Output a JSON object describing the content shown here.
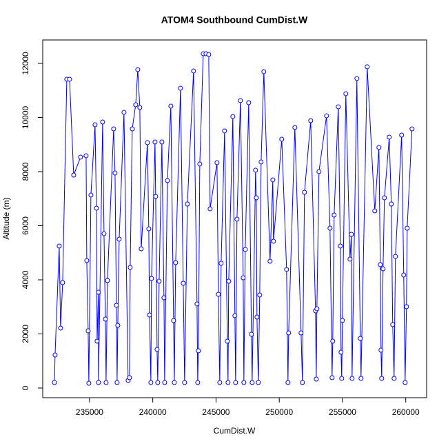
{
  "chart_data": {
    "type": "line-points",
    "title": "ATOM4 Southbound CumDist.W",
    "x_label": "CumDist.W",
    "y_label": "Altitude (m)",
    "color": "#0000ff",
    "xlim": [
      231300,
      261650
    ],
    "ylim": [
      -357,
      12866
    ],
    "xticks": [
      235000,
      240000,
      245000,
      250000,
      255000,
      260000
    ],
    "yticks": [
      0,
      2000,
      4000,
      6000,
      8000,
      10000,
      12000
    ],
    "x": [
      232222,
      232276,
      232603,
      232712,
      232875,
      233202,
      233420,
      233747,
      234292,
      234728,
      234782,
      234891,
      234946,
      235109,
      235436,
      235545,
      235599,
      235708,
      235708,
      236035,
      236144,
      236253,
      236307,
      236416,
      236906,
      237015,
      237124,
      237178,
      237233,
      237342,
      237723,
      238050,
      238159,
      238214,
      238377,
      238649,
      238813,
      238976,
      239085,
      239575,
      239684,
      239739,
      239848,
      239902,
      240175,
      240229,
      240338,
      240393,
      240502,
      240720,
      240883,
      240938,
      241155,
      241428,
      241645,
      241700,
      241809,
      242190,
      242408,
      242517,
      242735,
      243225,
      243498,
      243552,
      243607,
      243716,
      243988,
      244206,
      244424,
      244533,
      245077,
      245186,
      245295,
      245404,
      245676,
      245894,
      245948,
      246003,
      246330,
      246493,
      246548,
      246657,
      246929,
      247147,
      247201,
      247310,
      247583,
      247800,
      247855,
      248127,
      248182,
      248236,
      248345,
      248454,
      248563,
      248781,
      249271,
      249489,
      249543,
      250197,
      250578,
      250687,
      250742,
      251232,
      251722,
      251831,
      251994,
      252485,
      252866,
      252921,
      252975,
      253139,
      253738,
      254010,
      254174,
      254228,
      254337,
      254664,
      254827,
      254882,
      254936,
      254991,
      255263,
      255590,
      255699,
      255754,
      256135,
      256407,
      256462,
      256952,
      257551,
      257878,
      257987,
      258041,
      258096,
      258205,
      258314,
      258695,
      258858,
      258967,
      259076,
      259185,
      259675,
      259839,
      259948,
      260057,
      260111,
      260493
    ],
    "values": [
      204,
      1223,
      5249,
      2217,
      3898,
      11415,
      11415,
      7873,
      8536,
      8587,
      4714,
      2115,
      178,
      7134,
      9733,
      6650,
      1733,
      3542,
      204,
      9835,
      5708,
      2548,
      204,
      3975,
      9580,
      7950,
      3058,
      204,
      2319,
      5504,
      10192,
      280,
      382,
      4459,
      9580,
      10472,
      11772,
      10370,
      5147,
      9071,
      5886,
      2701,
      204,
      4051,
      9096,
      7083,
      1427,
      204,
      3949,
      9096,
      3338,
      204,
      7669,
      10421,
      2497,
      204,
      4637,
      11084,
      3873,
      204,
      6803,
      11721,
      3109,
      204,
      1376,
      8281,
      12358,
      12358,
      12332,
      6625,
      8332,
      3465,
      204,
      4612,
      9504,
      1733,
      204,
      3949,
      10039,
      2675,
      204,
      6243,
      10625,
      4077,
      204,
      5122,
      10548,
      1987,
      204,
      8052,
      7032,
      2624,
      204,
      3440,
      8358,
      11695,
      4688,
      7695,
      5427,
      9198,
      4383,
      204,
      2038,
      9631,
      2038,
      204,
      7236,
      9886,
      2854,
      331,
      2930,
      8001,
      10065,
      5911,
      382,
      1733,
      6395,
      10396,
      5249,
      1325,
      357,
      2497,
      10880,
      4765,
      5682,
      357,
      11441,
      1835,
      357,
      11874,
      6548,
      8893,
      4561,
      1401,
      357,
      4408,
      7032,
      9275,
      6803,
      2344,
      357,
      4867,
      9351,
      4179,
      204,
      3007,
      5911,
      9580
    ]
  }
}
